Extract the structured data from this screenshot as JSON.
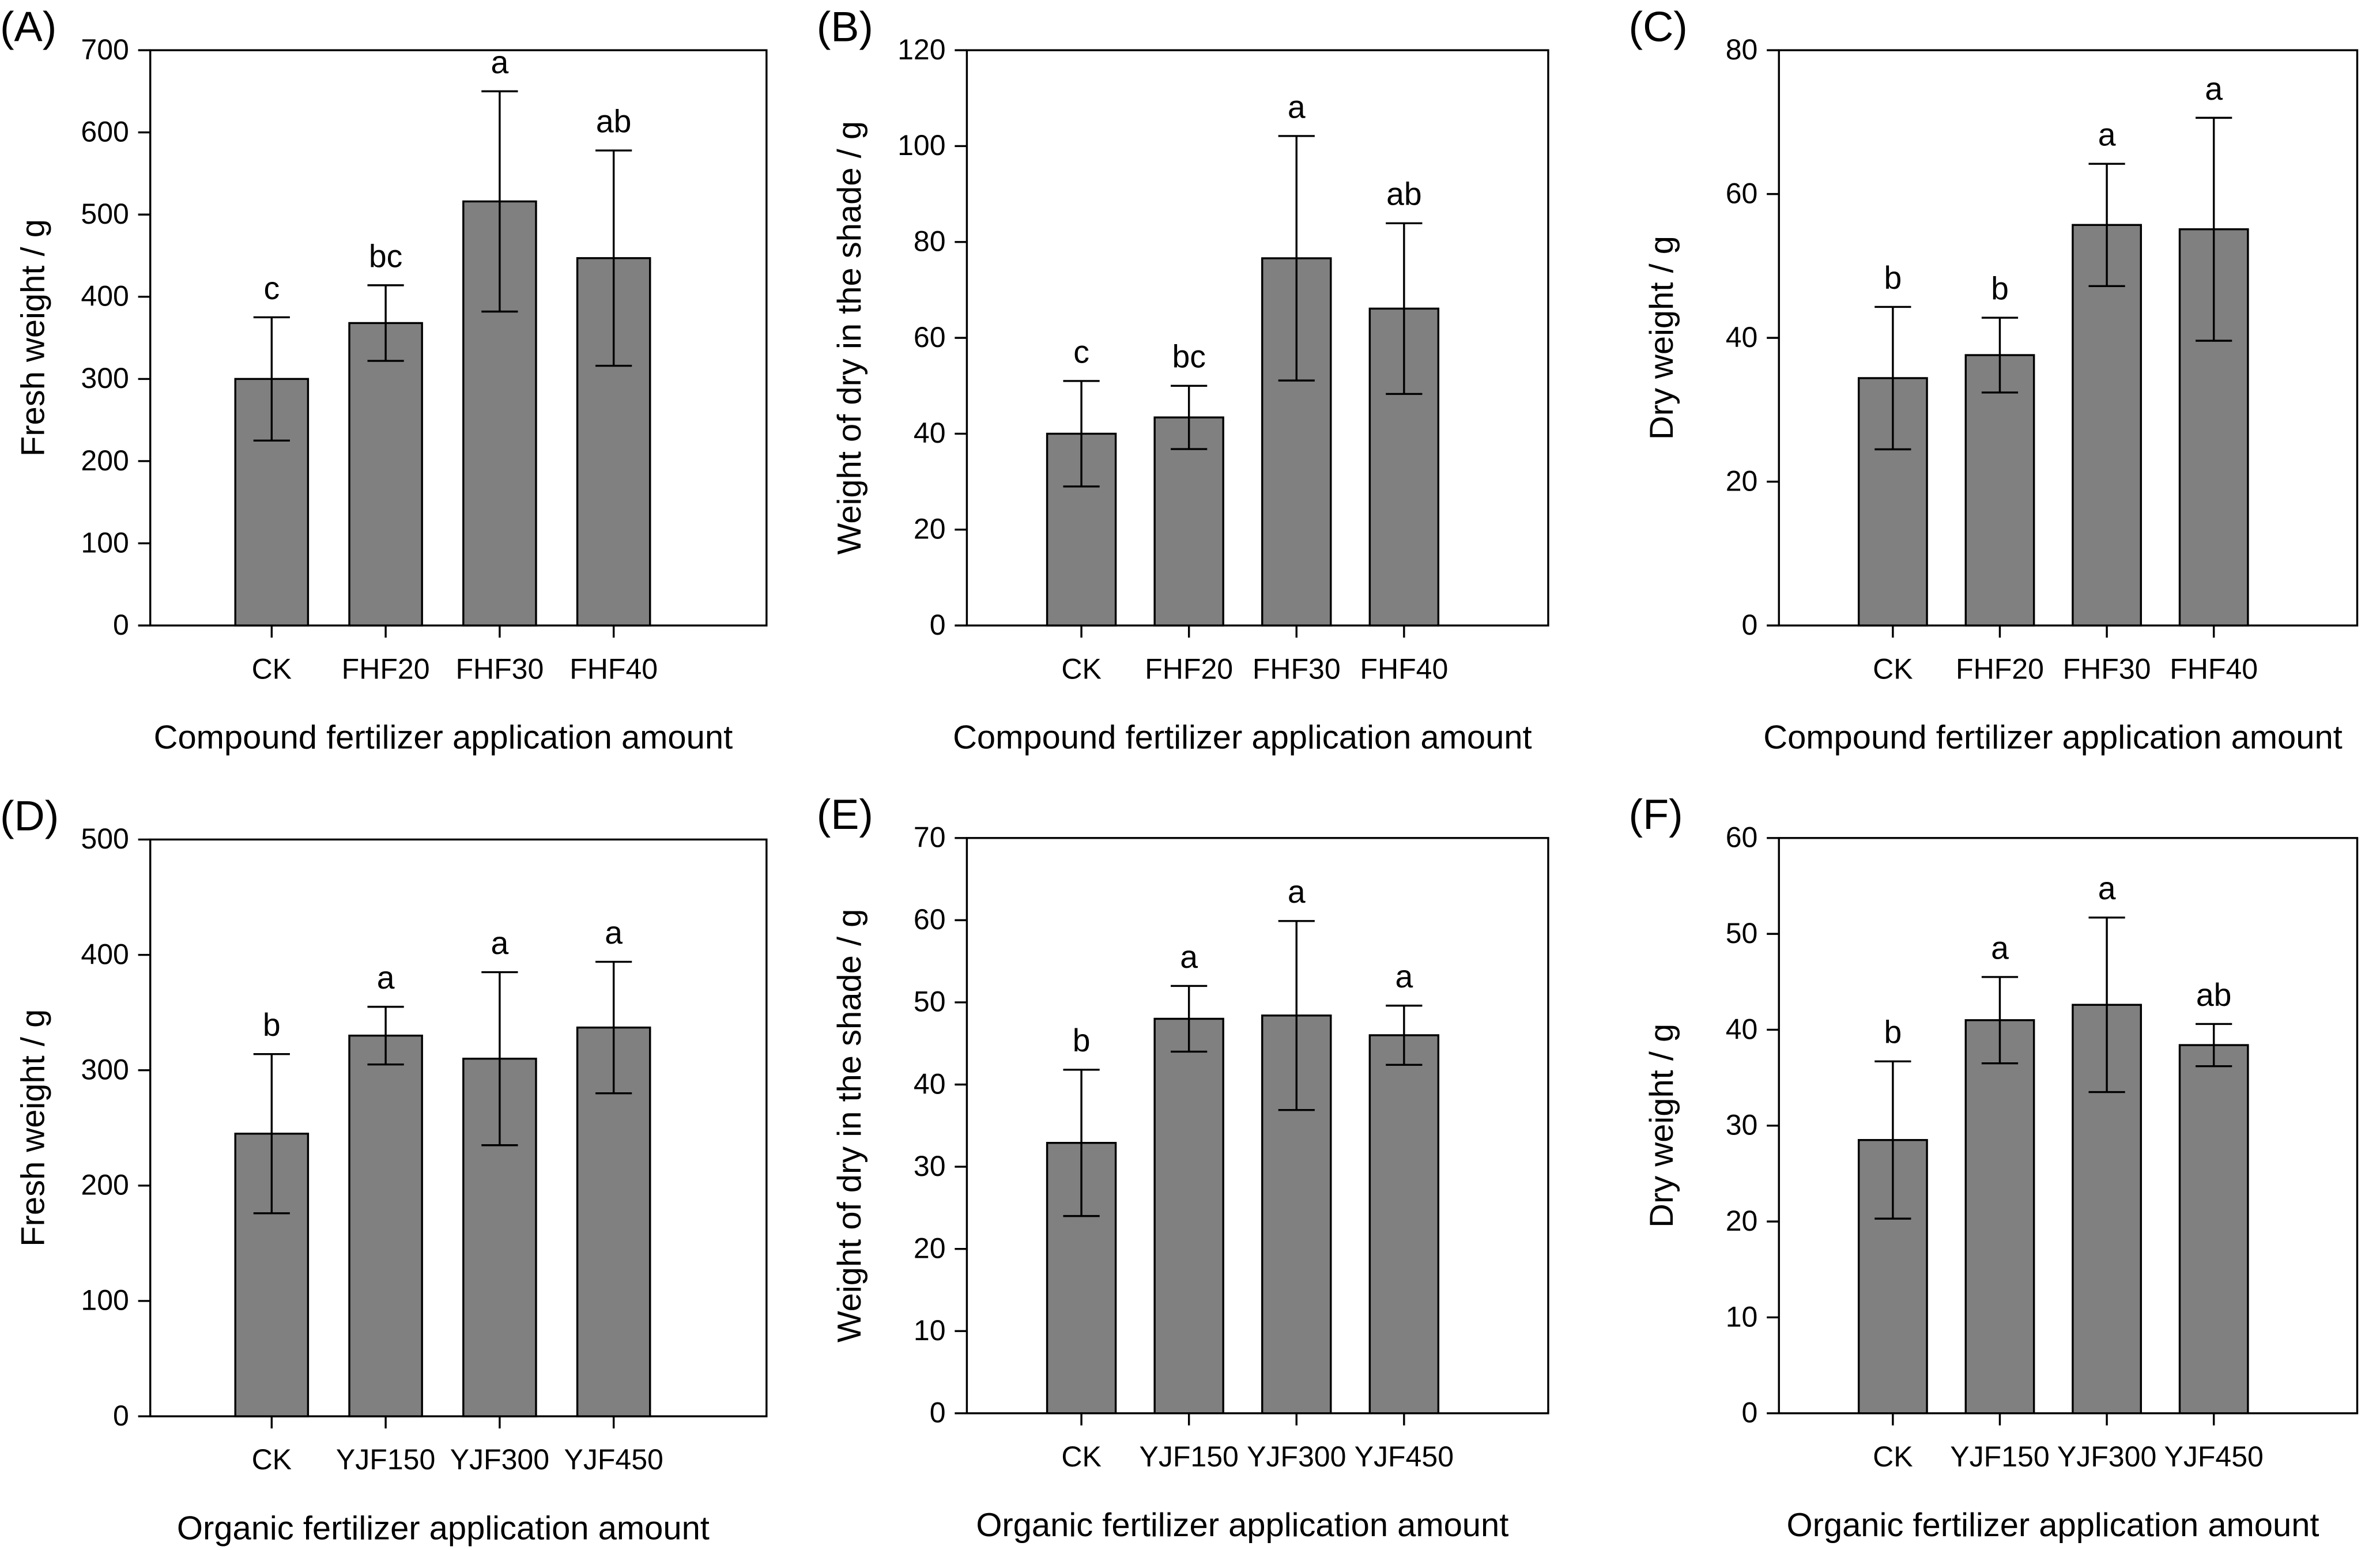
{
  "chart_data": [
    {
      "panel_label": "(A)",
      "type": "bar",
      "categories": [
        "CK",
        "FHF20",
        "FHF30",
        "FHF40"
      ],
      "values": [
        300,
        368,
        516,
        447
      ],
      "errors": [
        75,
        46,
        134,
        131
      ],
      "letters": [
        "c",
        "bc",
        "a",
        "ab"
      ],
      "xlabel": "Compound fertilizer application amount",
      "ylabel": "Fresh weight / g",
      "ylim": [
        0,
        700
      ],
      "yticks": [
        0,
        100,
        200,
        300,
        400,
        500,
        600,
        700
      ]
    },
    {
      "panel_label": "(B)",
      "type": "bar",
      "categories": [
        "CK",
        "FHF20",
        "FHF30",
        "FHF40"
      ],
      "values": [
        40,
        43.4,
        76.6,
        66.1
      ],
      "errors": [
        11,
        6.6,
        25.5,
        17.8
      ],
      "letters": [
        "c",
        "bc",
        "a",
        "ab"
      ],
      "xlabel": "Compound fertilizer application amount",
      "ylabel": "Weight of dry in the shade / g",
      "ylim": [
        0,
        120
      ],
      "yticks": [
        0,
        20,
        40,
        60,
        80,
        100,
        120
      ]
    },
    {
      "panel_label": "(C)",
      "type": "bar",
      "categories": [
        "CK",
        "FHF20",
        "FHF30",
        "FHF40"
      ],
      "values": [
        34.4,
        37.6,
        55.7,
        55.1
      ],
      "errors": [
        9.9,
        5.2,
        8.5,
        15.5
      ],
      "letters": [
        "b",
        "b",
        "a",
        "a"
      ],
      "xlabel": "Compound fertilizer application amount",
      "ylabel": "Dry weight / g",
      "ylim": [
        0,
        80
      ],
      "yticks": [
        0,
        20,
        40,
        60,
        80
      ]
    },
    {
      "panel_label": "(D)",
      "type": "bar",
      "categories": [
        "CK",
        "YJF150",
        "YJF300",
        "YJF450"
      ],
      "values": [
        245,
        330,
        310,
        337
      ],
      "errors": [
        69,
        25,
        75,
        57
      ],
      "letters": [
        "b",
        "a",
        "a",
        "a"
      ],
      "xlabel": "Organic fertilizer application amount",
      "ylabel": "Fresh weight / g",
      "ylim": [
        0,
        500
      ],
      "yticks": [
        0,
        100,
        200,
        300,
        400,
        500
      ]
    },
    {
      "panel_label": "(E)",
      "type": "bar",
      "categories": [
        "CK",
        "YJF150",
        "YJF300",
        "YJF450"
      ],
      "values": [
        32.9,
        48,
        48.4,
        46
      ],
      "errors": [
        8.9,
        4,
        11.5,
        3.6
      ],
      "letters": [
        "b",
        "a",
        "a",
        "a"
      ],
      "xlabel": "Organic fertilizer application amount",
      "ylabel": "Weight of dry in the shade / g",
      "ylim": [
        0,
        70
      ],
      "yticks": [
        0,
        10,
        20,
        30,
        40,
        50,
        60,
        70
      ]
    },
    {
      "panel_label": "(F)",
      "type": "bar",
      "categories": [
        "CK",
        "YJF150",
        "YJF300",
        "YJF450"
      ],
      "values": [
        28.5,
        41,
        42.6,
        38.4
      ],
      "errors": [
        8.2,
        4.5,
        9.1,
        2.2
      ],
      "letters": [
        "b",
        "a",
        "a",
        "ab"
      ],
      "xlabel": "Organic fertilizer application amount",
      "ylabel": "Dry weight / g",
      "ylim": [
        0,
        60
      ],
      "yticks": [
        0,
        10,
        20,
        30,
        40,
        50,
        60
      ]
    }
  ],
  "colors": {
    "bar": "#808080",
    "axis": "#000000"
  }
}
